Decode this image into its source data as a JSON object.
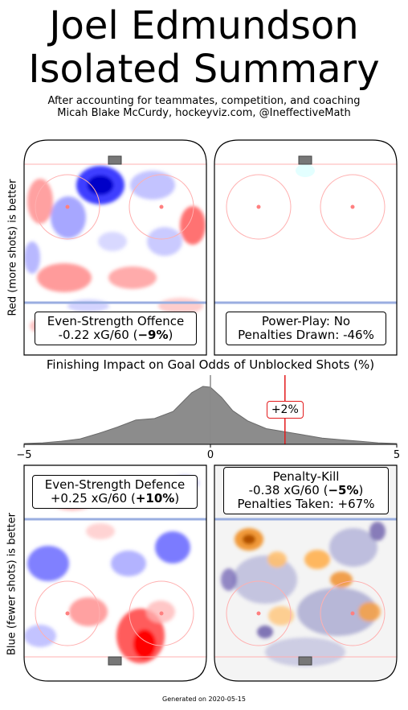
{
  "title_line1": "Joel Edmundson",
  "title_line2": "Isolated Summary",
  "subtitle_line1": "After accounting for teammates, competition, and coaching",
  "subtitle_line2": "Micah Blake McCurdy, hockeyviz.com, @IneffectiveMath",
  "ylabel_top": "Red (more shots) is better",
  "ylabel_bottom": "Blue (fewer shots) is better",
  "panels": {
    "es_offence": {
      "line1": "Even-Strength Offence",
      "line2_pre": "-0.22 xG/60 (",
      "line2_bold": "−9%",
      "line2_post": ")"
    },
    "pp": {
      "line1": "Power-Play: No",
      "line2": "Penalties Drawn: -46%"
    },
    "es_defence": {
      "line1": "Even-Strength Defence",
      "line2_pre": "+0.25 xG/60 (",
      "line2_bold": "+10%",
      "line2_post": ")"
    },
    "pk": {
      "line1": "Penalty-Kill",
      "line2_pre": "-0.38 xG/60 (",
      "line2_bold": "−5%",
      "line2_post": ")",
      "line3": "Penalties Taken: +67%"
    }
  },
  "finishing": {
    "title": "Finishing Impact on Goal Odds of Unblocked Shots (%)",
    "marker_label": "+2%"
  },
  "footer": "Generated on 2020-05-15",
  "colors": {
    "more": "#ff2a2a",
    "fewer": "#2a2aff",
    "pk_more": "#e07b00",
    "pk_fewer": "#3b2a8f",
    "marker": "#e31a1c",
    "density": "#8c8c8c"
  },
  "chart_data": {
    "type": "area",
    "title": "Finishing Impact on Goal Odds of Unblocked Shots (%)",
    "xlim": [
      -5,
      5
    ],
    "x_ticks": [
      "−5",
      "0",
      "5"
    ],
    "density": {
      "x": [
        -5,
        -4.5,
        -4,
        -3.5,
        -3,
        -2.5,
        -2,
        -1.5,
        -1,
        -0.5,
        -0.2,
        0,
        0.3,
        0.6,
        1,
        1.5,
        2,
        2.5,
        3,
        3.5,
        4,
        4.5,
        5
      ],
      "y": [
        0.01,
        0.02,
        0.04,
        0.07,
        0.14,
        0.22,
        0.31,
        0.33,
        0.42,
        0.66,
        0.74,
        0.73,
        0.6,
        0.43,
        0.3,
        0.2,
        0.16,
        0.12,
        0.08,
        0.06,
        0.04,
        0.02,
        0.01
      ]
    },
    "reference_x": 0,
    "marker_x": 2,
    "marker_label": "+2%"
  }
}
